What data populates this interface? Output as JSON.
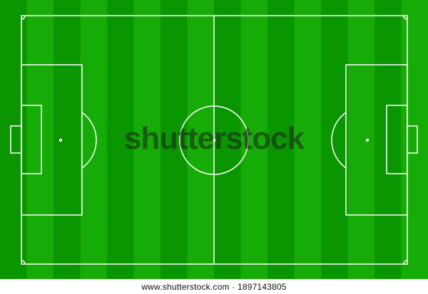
{
  "colors": {
    "stripe_dark": "#0a9600",
    "stripe_light": "#16ab06",
    "line": "#ffffff",
    "footer_bg": "#ffffff",
    "footer_text": "#111111"
  },
  "watermark": {
    "text": "shutterstock"
  },
  "footer": {
    "text": "www.shutterstock.com · 1897143805"
  }
}
